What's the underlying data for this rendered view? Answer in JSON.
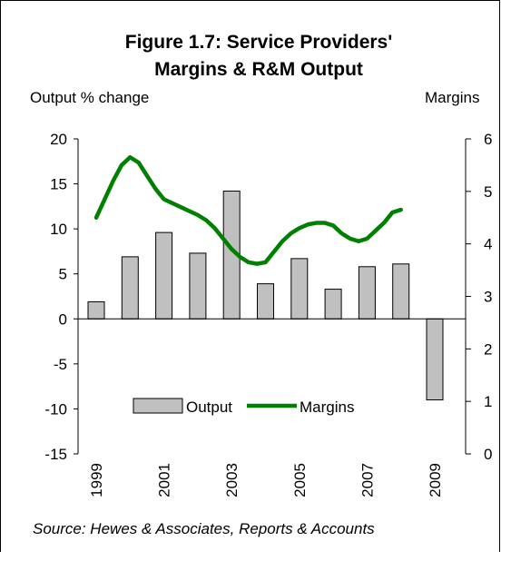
{
  "chart_data": {
    "type": "bar",
    "title_line1": "Figure 1.7: Service Providers'",
    "title_line2": "Margins & R&M Output",
    "ylabel_left": "Output % change",
    "ylabel_right": "Margins",
    "source": "Source: Hewes & Associates, Reports & Accounts",
    "ylim_left": [
      -15,
      20
    ],
    "yticks_left": [
      "20",
      "15",
      "10",
      "5",
      "0",
      "-5",
      "-10",
      "-15"
    ],
    "ylim_right": [
      0,
      6
    ],
    "yticks_right": [
      "6",
      "5",
      "4",
      "3",
      "2",
      "1",
      "0"
    ],
    "x_tick_labels": [
      "1999",
      "2001",
      "2003",
      "2005",
      "2007",
      "2009"
    ],
    "x_tick_years": [
      1999,
      2001,
      2003,
      2005,
      2007,
      2009
    ],
    "series": [
      {
        "name": "Output",
        "kind": "bar",
        "axis": "left",
        "color": "#c0c0c0",
        "x": [
          1999,
          2000,
          2001,
          2002,
          2003,
          2004,
          2005,
          2006,
          2007,
          2008,
          2009
        ],
        "values": [
          1.9,
          6.9,
          9.6,
          7.3,
          14.2,
          3.9,
          6.7,
          3.3,
          5.8,
          6.1,
          -9.0
        ]
      },
      {
        "name": "Margins",
        "kind": "line",
        "axis": "right",
        "color": "#008000",
        "x": [
          1999,
          1999.25,
          1999.5,
          1999.75,
          2000,
          2000.25,
          2000.5,
          2000.75,
          2001,
          2001.5,
          2002,
          2002.25,
          2002.5,
          2002.75,
          2003,
          2003.25,
          2003.5,
          2003.75,
          2004,
          2004.25,
          2004.5,
          2004.75,
          2005,
          2005.25,
          2005.5,
          2005.75,
          2006,
          2006.25,
          2006.5,
          2006.75,
          2007,
          2007.25,
          2007.5,
          2007.75,
          2008
        ],
        "values": [
          4.5,
          4.85,
          5.2,
          5.5,
          5.65,
          5.55,
          5.3,
          5.05,
          4.85,
          4.7,
          4.55,
          4.45,
          4.3,
          4.1,
          3.9,
          3.75,
          3.65,
          3.62,
          3.65,
          3.85,
          4.05,
          4.2,
          4.3,
          4.37,
          4.4,
          4.4,
          4.35,
          4.2,
          4.1,
          4.05,
          4.1,
          4.25,
          4.4,
          4.6,
          4.65
        ]
      }
    ],
    "legend": {
      "placement": "lower-middle",
      "items": [
        "Output",
        "Margins"
      ]
    }
  }
}
